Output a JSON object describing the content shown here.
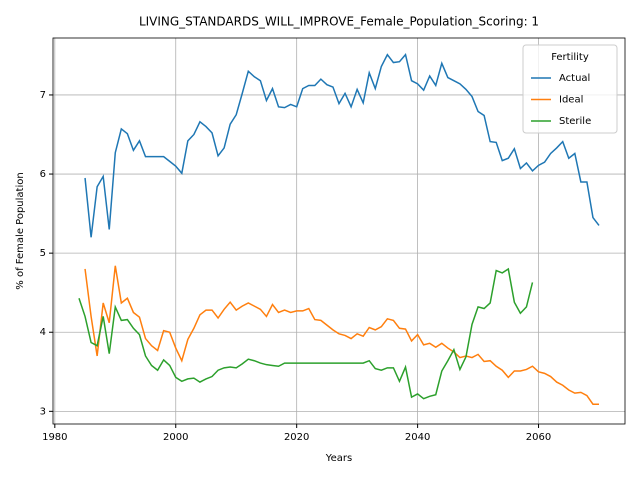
{
  "chart_data": {
    "type": "line",
    "title": "LIVING_STANDARDS_WILL_IMPROVE_Female_Population_Scoring: 1",
    "xlabel": "Years",
    "ylabel": "% of Female Population",
    "legend_title": "Fertility",
    "legend": "upper right",
    "grid": true,
    "xlim": [
      1979.7,
      2074.3
    ],
    "ylim": [
      2.84,
      7.72
    ],
    "xticks": [
      1980,
      2000,
      2020,
      2040,
      2060
    ],
    "yticks": [
      3,
      4,
      5,
      6,
      7
    ],
    "x": [
      1984,
      1985,
      1986,
      1987,
      1988,
      1989,
      1990,
      1991,
      1992,
      1993,
      1994,
      1995,
      1996,
      1997,
      1998,
      1999,
      2000,
      2001,
      2002,
      2003,
      2004,
      2005,
      2006,
      2007,
      2008,
      2009,
      2010,
      2011,
      2012,
      2013,
      2014,
      2015,
      2016,
      2017,
      2018,
      2019,
      2020,
      2021,
      2022,
      2023,
      2024,
      2025,
      2026,
      2027,
      2028,
      2029,
      2030,
      2031,
      2032,
      2033,
      2034,
      2035,
      2036,
      2037,
      2038,
      2039,
      2040,
      2041,
      2042,
      2043,
      2044,
      2045,
      2046,
      2047,
      2048,
      2049,
      2050,
      2051,
      2052,
      2053,
      2054,
      2055,
      2056,
      2057,
      2058,
      2059,
      2060,
      2061,
      2062,
      2063,
      2064,
      2065,
      2066,
      2067,
      2068,
      2069,
      2070
    ],
    "series": [
      {
        "name": "Actual",
        "color": "#1f77b4",
        "values": [
          null,
          5.95,
          5.2,
          5.84,
          5.97,
          5.3,
          6.27,
          6.57,
          6.51,
          6.3,
          6.42,
          6.22,
          6.22,
          6.22,
          6.22,
          6.16,
          6.1,
          6.01,
          6.42,
          6.5,
          6.66,
          6.6,
          6.52,
          6.23,
          6.33,
          6.63,
          6.75,
          7.02,
          7.3,
          7.23,
          7.18,
          6.93,
          7.08,
          6.85,
          6.84,
          6.88,
          6.85,
          7.08,
          7.12,
          7.12,
          7.2,
          7.13,
          7.1,
          6.89,
          7.02,
          6.85,
          7.07,
          6.9,
          7.28,
          7.08,
          7.36,
          7.51,
          7.41,
          7.42,
          7.51,
          7.18,
          7.14,
          7.06,
          7.24,
          7.12,
          7.4,
          7.22,
          7.18,
          7.14,
          7.07,
          6.98,
          6.79,
          6.74,
          6.41,
          6.4,
          6.17,
          6.2,
          6.32,
          6.07,
          6.14,
          6.04,
          6.11,
          6.15,
          6.26,
          6.33,
          6.41,
          6.2,
          6.26,
          5.9,
          5.9,
          5.45,
          5.35
        ]
      },
      {
        "name": "Ideal",
        "color": "#ff7f0e",
        "values": [
          null,
          4.8,
          4.2,
          3.7,
          4.37,
          4.12,
          4.84,
          4.37,
          4.43,
          4.25,
          4.19,
          3.92,
          3.83,
          3.77,
          4.02,
          4.0,
          3.8,
          3.64,
          3.91,
          4.05,
          4.22,
          4.28,
          4.28,
          4.18,
          4.29,
          4.38,
          4.28,
          4.33,
          4.37,
          4.33,
          4.29,
          4.2,
          4.35,
          4.25,
          4.28,
          4.25,
          4.27,
          4.27,
          4.3,
          4.16,
          4.15,
          4.09,
          4.03,
          3.98,
          3.96,
          3.92,
          3.98,
          3.95,
          4.06,
          4.03,
          4.07,
          4.17,
          4.15,
          4.05,
          4.04,
          3.89,
          3.97,
          3.84,
          3.86,
          3.81,
          3.86,
          3.8,
          3.75,
          3.68,
          3.7,
          3.68,
          3.72,
          3.63,
          3.64,
          3.57,
          3.52,
          3.43,
          3.51,
          3.51,
          3.53,
          3.57,
          3.5,
          3.48,
          3.44,
          3.37,
          3.33,
          3.27,
          3.23,
          3.24,
          3.2,
          3.09,
          3.09
        ]
      },
      {
        "name": "Sterile",
        "color": "#2ca02c",
        "values": [
          4.43,
          4.2,
          3.87,
          3.83,
          4.2,
          3.73,
          4.32,
          4.15,
          4.16,
          4.05,
          3.97,
          3.7,
          3.58,
          3.52,
          3.65,
          3.58,
          3.43,
          3.38,
          3.41,
          3.42,
          3.37,
          3.41,
          3.44,
          3.52,
          3.55,
          3.56,
          3.55,
          3.6,
          3.66,
          3.64,
          3.61,
          3.59,
          3.58,
          3.57,
          3.61,
          3.61,
          3.61,
          3.61,
          3.61,
          3.61,
          3.61,
          3.61,
          3.61,
          3.61,
          3.61,
          3.61,
          3.61,
          3.61,
          3.64,
          3.54,
          3.52,
          3.55,
          3.55,
          3.38,
          3.56,
          3.18,
          3.22,
          3.16,
          3.19,
          3.21,
          3.51,
          3.64,
          3.78,
          3.53,
          3.69,
          4.1,
          4.32,
          4.3,
          4.37,
          4.78,
          4.75,
          4.8,
          4.38,
          4.24,
          4.32,
          4.63,
          null,
          null,
          null,
          null,
          null,
          null,
          null,
          null,
          null,
          null,
          null
        ]
      }
    ]
  }
}
